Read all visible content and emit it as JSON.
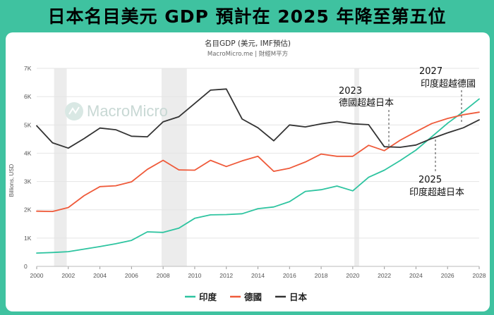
{
  "banner": {
    "title": "日本名目美元 GDP 預計在 2025 年降至第五位"
  },
  "watermark": {
    "text": "MacroMicro"
  },
  "chart_data": {
    "type": "line",
    "title": "名目GDP (美元, IMF預估)",
    "subtitle": "MacroMicro.me | 財經M平方",
    "ylabel": "Billions, USD",
    "ylim": [
      0,
      7000
    ],
    "xlim": [
      2000,
      2028
    ],
    "yticks": [
      0,
      1000,
      2000,
      3000,
      4000,
      5000,
      6000,
      7000
    ],
    "ytick_labels": [
      "0",
      "1K",
      "2K",
      "3K",
      "4K",
      "5K",
      "6K",
      "7K"
    ],
    "xticks": [
      2000,
      2002,
      2004,
      2006,
      2008,
      2010,
      2012,
      2014,
      2016,
      2018,
      2020,
      2022,
      2024,
      2026,
      2028
    ],
    "shaded_periods": [
      [
        2001.1,
        2001.9
      ],
      [
        2007.9,
        2009.5
      ],
      [
        2020.1,
        2020.4
      ]
    ],
    "x": [
      2000,
      2001,
      2002,
      2003,
      2004,
      2005,
      2006,
      2007,
      2008,
      2009,
      2010,
      2011,
      2012,
      2013,
      2014,
      2015,
      2016,
      2017,
      2018,
      2019,
      2020,
      2021,
      2022,
      2023,
      2024,
      2025,
      2026,
      2027,
      2028
    ],
    "series": [
      {
        "name": "印度",
        "color": "#2ec4a0",
        "values": [
          470,
          490,
          520,
          610,
          700,
          800,
          920,
          1220,
          1200,
          1350,
          1700,
          1820,
          1830,
          1860,
          2040,
          2100,
          2290,
          2650,
          2710,
          2840,
          2670,
          3150,
          3400,
          3740,
          4110,
          4580,
          5060,
          5470,
          5920
        ]
      },
      {
        "name": "德國",
        "color": "#ef5a3a",
        "values": [
          1950,
          1940,
          2080,
          2500,
          2820,
          2850,
          2990,
          3430,
          3750,
          3410,
          3400,
          3750,
          3530,
          3730,
          3890,
          3360,
          3470,
          3690,
          3970,
          3890,
          3890,
          4280,
          4090,
          4460,
          4760,
          5050,
          5230,
          5360,
          5450
        ]
      },
      {
        "name": "日本",
        "color": "#333333",
        "values": [
          4970,
          4370,
          4180,
          4520,
          4890,
          4830,
          4600,
          4580,
          5110,
          5290,
          5760,
          6230,
          6270,
          5210,
          4900,
          4440,
          5000,
          4930,
          5040,
          5120,
          5040,
          5010,
          4230,
          4210,
          4290,
          4520,
          4720,
          4900,
          5180
        ]
      }
    ],
    "annotations": [
      {
        "year": "2023",
        "text": "德國超越日本"
      },
      {
        "year": "2025",
        "text": "印度超越日本"
      },
      {
        "year": "2027",
        "text": "印度超越德國"
      }
    ],
    "legend_position": "bottom"
  }
}
